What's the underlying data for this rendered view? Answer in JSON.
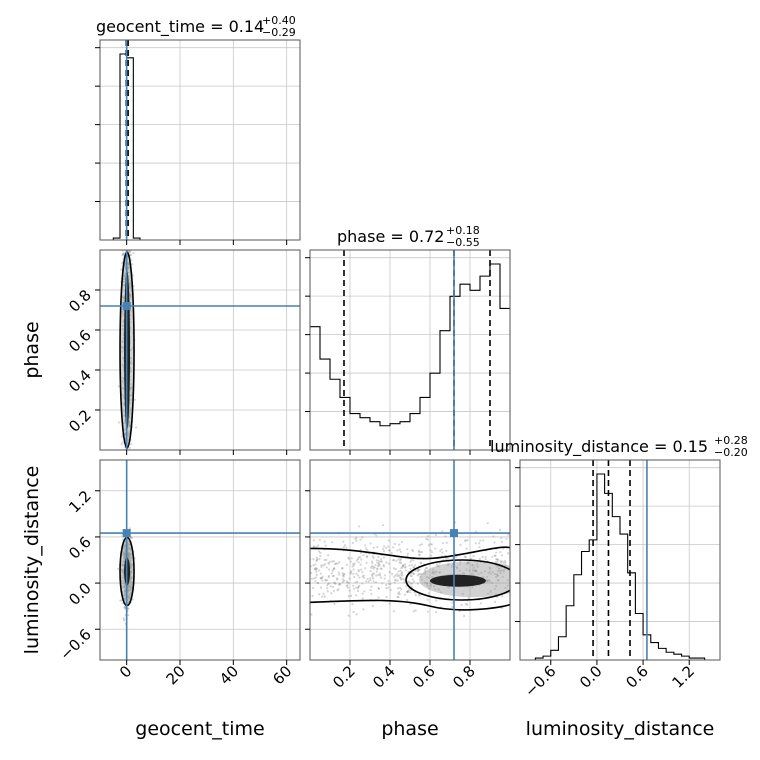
{
  "chart_data": {
    "type": "corner",
    "parameters": [
      "geocent_time",
      "phase",
      "luminosity_distance"
    ],
    "injection": {
      "geocent_time": 0.0,
      "phase": 0.72,
      "luminosity_distance": 0.65
    },
    "titles": [
      {
        "param": "geocent_time",
        "text": "geocent_time = 0.14",
        "plus": "+0.40",
        "minus": "−0.29"
      },
      {
        "param": "phase",
        "text": "phase = 0.72",
        "plus": "+0.18",
        "minus": "−0.55"
      },
      {
        "param": "luminosity_distance",
        "text": "luminosity_distance = 0.15",
        "plus": "+0.28",
        "minus": "−0.20"
      }
    ],
    "axis_labels": [
      "geocent_time",
      "phase",
      "luminosity_distance"
    ],
    "ranges": {
      "geocent_time": [
        -10,
        65
      ],
      "phase": [
        0.0,
        1.0
      ],
      "luminosity_distance": [
        -1.0,
        1.6
      ]
    },
    "ticks": {
      "geocent_time": [
        "0",
        "20",
        "40",
        "60"
      ],
      "phase": [
        "0.2",
        "0.4",
        "0.6",
        "0.8"
      ],
      "luminosity_distance": [
        "−0.6",
        "0.0",
        "0.6",
        "1.2"
      ]
    },
    "quantiles": {
      "geocent_time": [
        -0.15,
        0.14,
        0.54
      ],
      "phase": [
        0.17,
        0.72,
        0.9
      ],
      "luminosity_distance": [
        -0.05,
        0.15,
        0.43
      ]
    },
    "hist_1d": {
      "geocent_time": {
        "edges": [
          -10,
          -7.5,
          -5,
          -2.5,
          0,
          2.5,
          5,
          7.5,
          10,
          12.5,
          15,
          17.5,
          20,
          22.5,
          25,
          27.5,
          30,
          32.5,
          35,
          37.5,
          40,
          42.5,
          45,
          47.5,
          50,
          52.5,
          55,
          57.5,
          60,
          62.5,
          65
        ],
        "counts": [
          0,
          0,
          0.01,
          0.97,
          0.95,
          0.01,
          0,
          0,
          0,
          0,
          0,
          0,
          0,
          0,
          0,
          0,
          0,
          0,
          0,
          0,
          0,
          0,
          0,
          0,
          0,
          0,
          0,
          0,
          0,
          0
        ]
      },
      "phase": {
        "edges": [
          0.0,
          0.05,
          0.1,
          0.15,
          0.2,
          0.25,
          0.3,
          0.35,
          0.4,
          0.45,
          0.5,
          0.55,
          0.6,
          0.65,
          0.7,
          0.75,
          0.8,
          0.85,
          0.9,
          0.95,
          1.0
        ],
        "counts": [
          0.61,
          0.45,
          0.35,
          0.26,
          0.18,
          0.16,
          0.14,
          0.12,
          0.13,
          0.14,
          0.18,
          0.26,
          0.38,
          0.59,
          0.76,
          0.82,
          0.79,
          0.86,
          0.92,
          0.7
        ]
      },
      "luminosity_distance": {
        "edges": [
          -1.0,
          -0.9,
          -0.8,
          -0.7,
          -0.6,
          -0.5,
          -0.4,
          -0.3,
          -0.2,
          -0.1,
          0.0,
          0.1,
          0.2,
          0.3,
          0.4,
          0.5,
          0.6,
          0.7,
          0.8,
          0.9,
          1.0,
          1.1,
          1.2,
          1.3,
          1.4,
          1.5,
          1.6
        ],
        "counts": [
          0,
          0,
          0.01,
          0.02,
          0.05,
          0.12,
          0.28,
          0.44,
          0.56,
          0.62,
          0.96,
          0.86,
          0.74,
          0.65,
          0.45,
          0.24,
          0.13,
          0.09,
          0.06,
          0.04,
          0.03,
          0.02,
          0.01,
          0.01,
          0,
          0
        ]
      }
    }
  }
}
